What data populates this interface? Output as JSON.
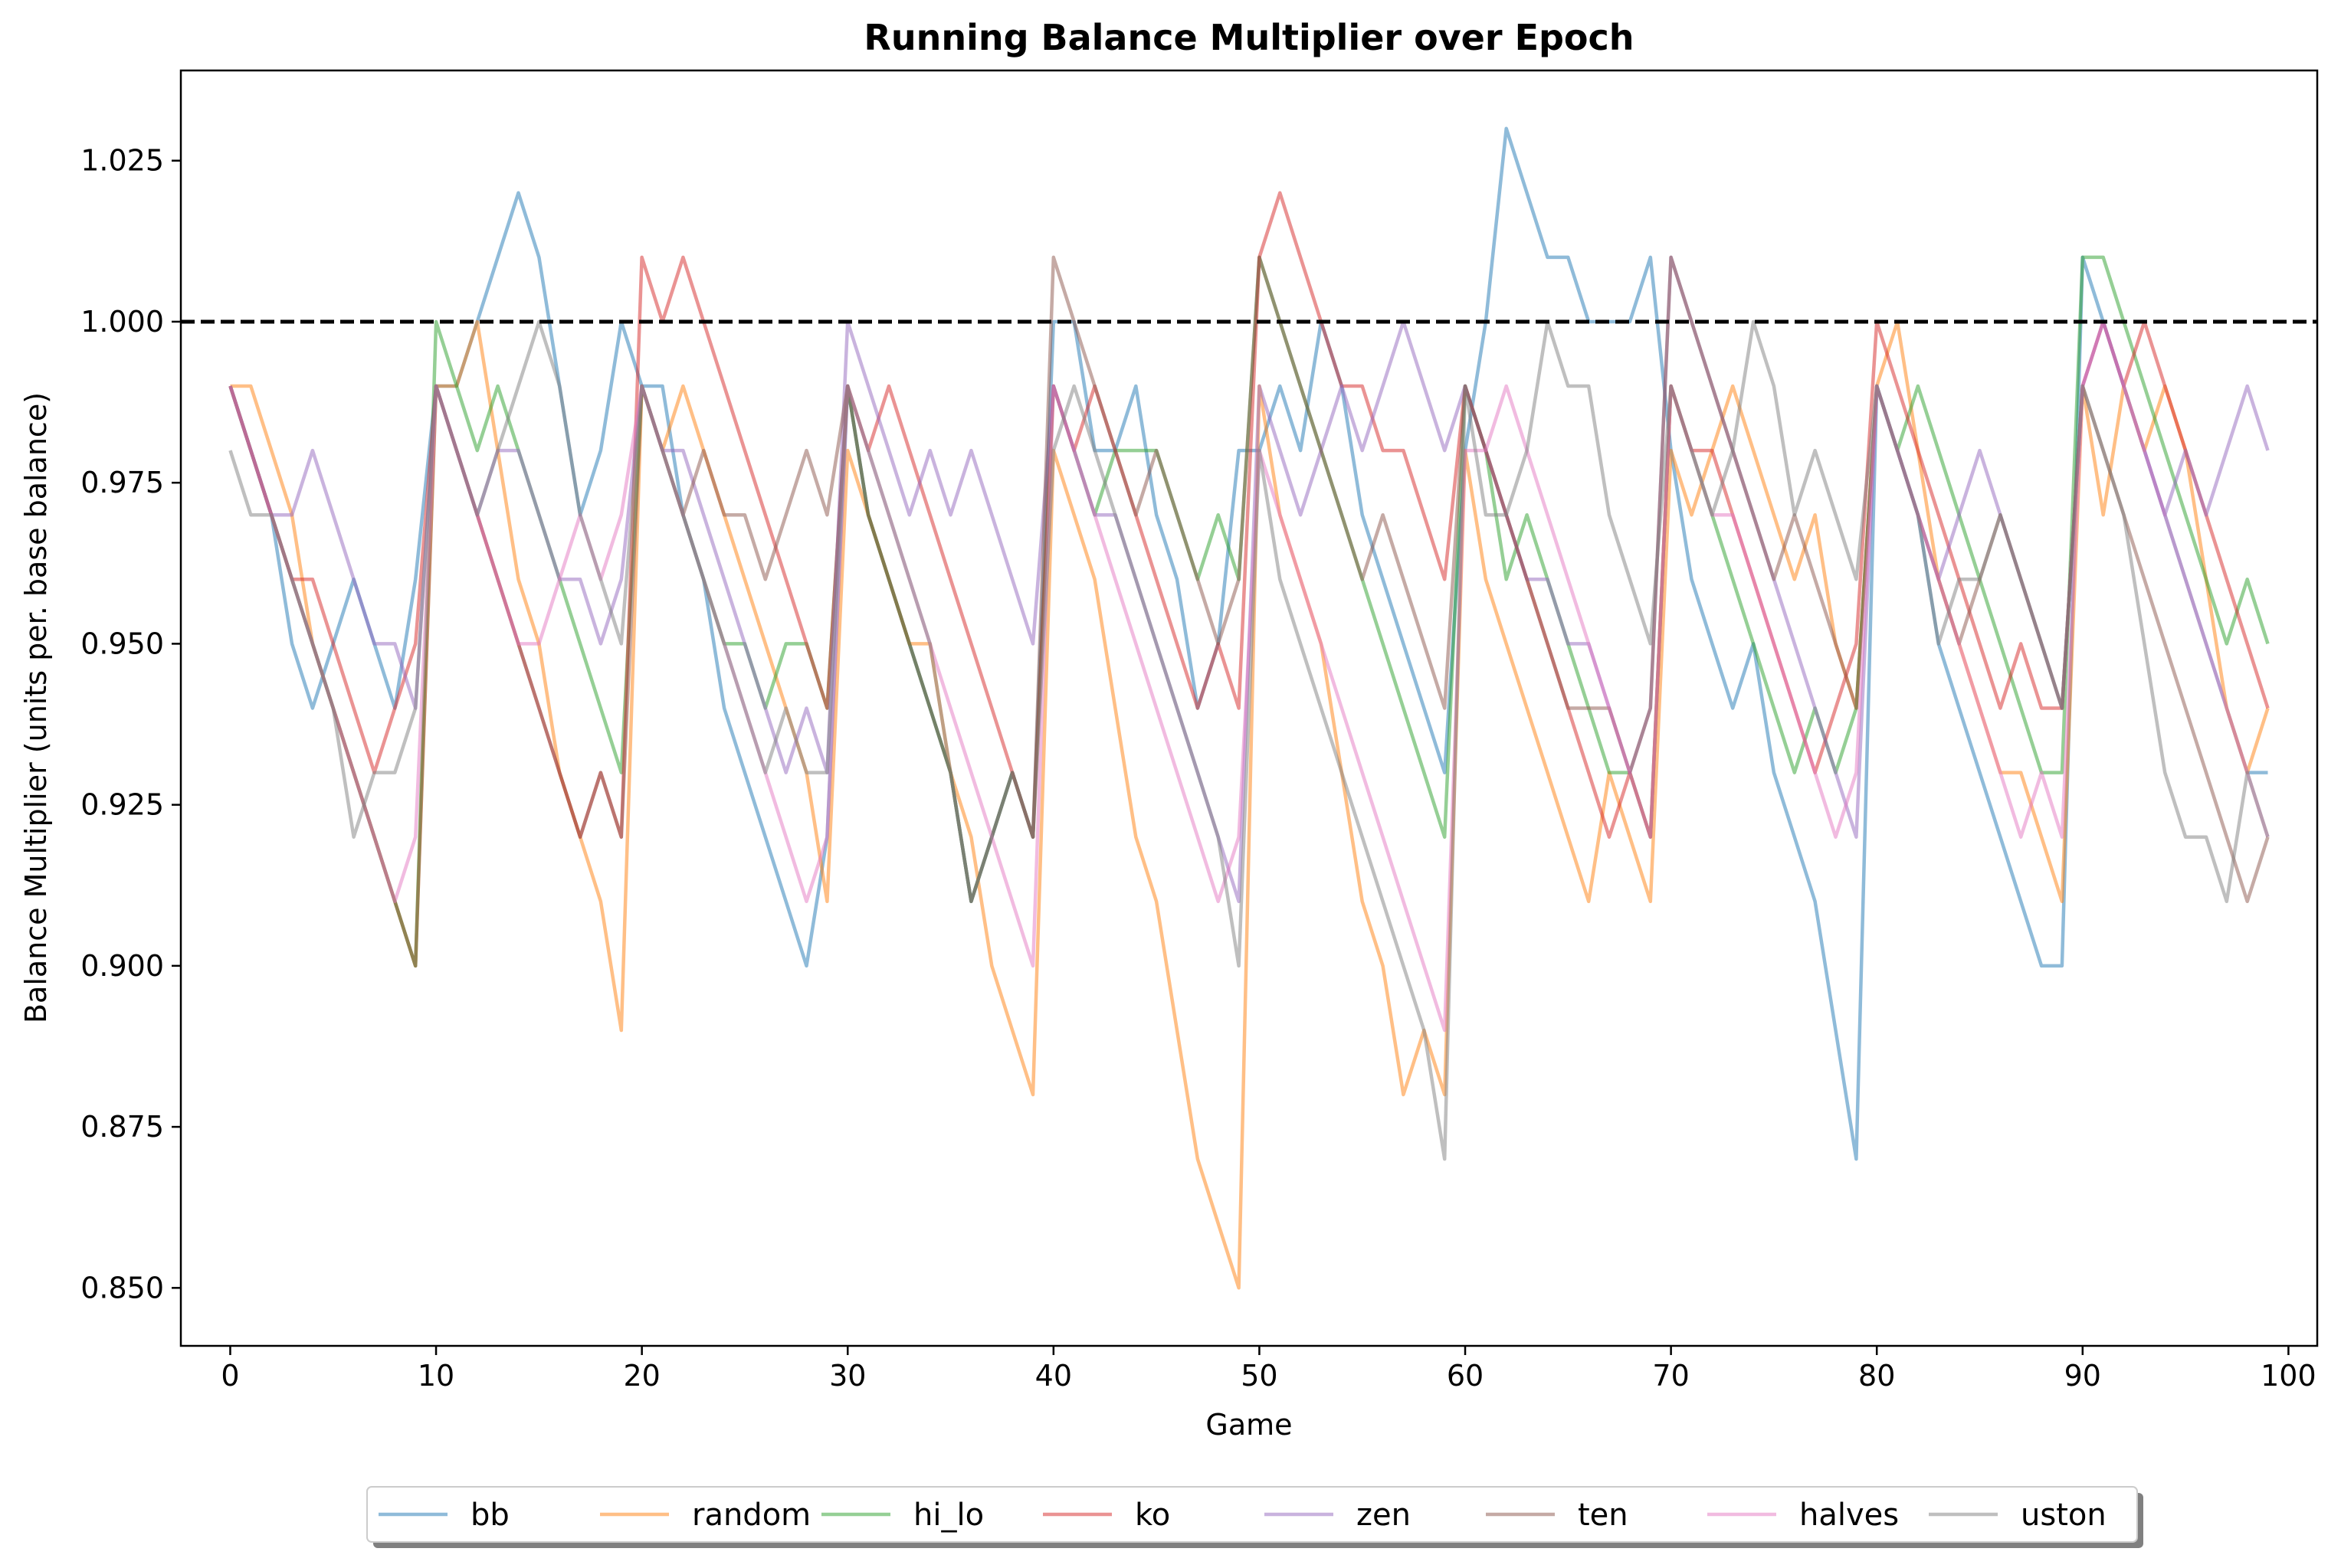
{
  "chart_data": {
    "type": "line",
    "title": "Running Balance Multiplier over Epoch",
    "xlabel": "Game",
    "ylabel": "Balance Multiplier (units per. base balance)",
    "xlim": [
      -2.4,
      101.4
    ],
    "ylim": [
      0.841,
      1.039
    ],
    "xticks": [
      0,
      10,
      20,
      30,
      40,
      50,
      60,
      70,
      80,
      90,
      100
    ],
    "yticks": [
      0.85,
      0.875,
      0.9,
      0.925,
      0.95,
      0.975,
      1.0,
      1.025
    ],
    "ytick_labels": [
      "0.850",
      "0.875",
      "0.900",
      "0.925",
      "0.950",
      "0.975",
      "1.000",
      "1.025"
    ],
    "reference_line": {
      "y": 1.0,
      "style": "dashed",
      "color": "#000000"
    },
    "grid": false,
    "legend_position": "bottom-center",
    "series": [
      {
        "name": "bb",
        "color": "#1f77b4",
        "values": [
          0.99,
          0.98,
          0.97,
          0.95,
          0.94,
          0.95,
          0.96,
          0.95,
          0.94,
          0.96,
          0.99,
          0.99,
          1.0,
          1.01,
          1.02,
          1.01,
          0.99,
          0.97,
          0.98,
          1.0,
          0.99,
          0.99,
          0.97,
          0.96,
          0.94,
          0.93,
          0.92,
          0.91,
          0.9,
          0.92,
          0.99,
          0.97,
          0.96,
          0.95,
          0.94,
          0.93,
          0.91,
          0.92,
          0.93,
          0.92,
          1.0,
          1.0,
          0.98,
          0.98,
          0.99,
          0.97,
          0.96,
          0.94,
          0.95,
          0.98,
          0.98,
          0.99,
          0.98,
          1.0,
          0.99,
          0.97,
          0.96,
          0.95,
          0.94,
          0.93,
          0.98,
          1.0,
          1.03,
          1.02,
          1.01,
          1.01,
          1.0,
          1.0,
          1.0,
          1.01,
          0.98,
          0.96,
          0.95,
          0.94,
          0.95,
          0.93,
          0.92,
          0.91,
          0.89,
          0.87,
          0.99,
          0.98,
          0.97,
          0.95,
          0.94,
          0.93,
          0.92,
          0.91,
          0.9,
          0.9,
          1.01,
          1.0,
          0.99,
          0.98,
          0.97,
          0.96,
          0.95,
          0.94,
          0.93,
          0.93
        ]
      },
      {
        "name": "random",
        "color": "#ff7f0e",
        "values": [
          0.99,
          0.99,
          0.98,
          0.97,
          0.95,
          0.94,
          0.93,
          0.92,
          0.91,
          0.9,
          0.99,
          0.99,
          1.0,
          0.98,
          0.96,
          0.95,
          0.93,
          0.92,
          0.91,
          0.89,
          0.99,
          0.98,
          0.99,
          0.98,
          0.97,
          0.96,
          0.95,
          0.94,
          0.93,
          0.91,
          0.98,
          0.97,
          0.96,
          0.95,
          0.95,
          0.93,
          0.92,
          0.9,
          0.89,
          0.88,
          0.98,
          0.97,
          0.96,
          0.94,
          0.92,
          0.91,
          0.89,
          0.87,
          0.86,
          0.85,
          0.99,
          0.97,
          0.96,
          0.95,
          0.93,
          0.91,
          0.9,
          0.88,
          0.89,
          0.88,
          0.98,
          0.96,
          0.95,
          0.94,
          0.93,
          0.92,
          0.91,
          0.93,
          0.92,
          0.91,
          0.98,
          0.97,
          0.98,
          0.99,
          0.98,
          0.97,
          0.96,
          0.97,
          0.95,
          0.94,
          0.99,
          1.0,
          0.98,
          0.96,
          0.95,
          0.94,
          0.93,
          0.93,
          0.92,
          0.91,
          0.99,
          0.97,
          0.99,
          0.98,
          0.99,
          0.98,
          0.96,
          0.94,
          0.93,
          0.94
        ]
      },
      {
        "name": "hi_lo",
        "color": "#2ca02c",
        "values": [
          0.99,
          0.98,
          0.97,
          0.96,
          0.95,
          0.94,
          0.93,
          0.92,
          0.91,
          0.9,
          1.0,
          0.99,
          0.98,
          0.99,
          0.98,
          0.97,
          0.96,
          0.95,
          0.94,
          0.93,
          0.99,
          0.98,
          0.97,
          0.96,
          0.95,
          0.95,
          0.94,
          0.95,
          0.95,
          0.94,
          0.99,
          0.97,
          0.96,
          0.95,
          0.94,
          0.93,
          0.91,
          0.92,
          0.93,
          0.92,
          0.99,
          0.98,
          0.97,
          0.98,
          0.98,
          0.98,
          0.97,
          0.96,
          0.97,
          0.96,
          1.01,
          1.0,
          0.99,
          0.98,
          0.97,
          0.96,
          0.95,
          0.94,
          0.93,
          0.92,
          0.99,
          0.98,
          0.96,
          0.97,
          0.96,
          0.95,
          0.94,
          0.93,
          0.93,
          0.92,
          0.99,
          0.98,
          0.97,
          0.96,
          0.95,
          0.94,
          0.93,
          0.94,
          0.93,
          0.94,
          0.99,
          0.98,
          0.99,
          0.98,
          0.97,
          0.96,
          0.95,
          0.94,
          0.93,
          0.93,
          1.01,
          1.01,
          1.0,
          0.99,
          0.98,
          0.97,
          0.96,
          0.95,
          0.96,
          0.95
        ]
      },
      {
        "name": "ko",
        "color": "#d62728",
        "values": [
          0.99,
          0.98,
          0.97,
          0.96,
          0.96,
          0.95,
          0.94,
          0.93,
          0.94,
          0.95,
          0.99,
          0.98,
          0.97,
          0.96,
          0.95,
          0.94,
          0.93,
          0.92,
          0.93,
          0.92,
          1.01,
          1.0,
          1.01,
          1.0,
          0.99,
          0.98,
          0.97,
          0.96,
          0.95,
          0.94,
          0.99,
          0.98,
          0.99,
          0.98,
          0.97,
          0.96,
          0.95,
          0.94,
          0.93,
          0.92,
          0.99,
          0.98,
          0.99,
          0.98,
          0.97,
          0.96,
          0.95,
          0.94,
          0.95,
          0.94,
          1.01,
          1.02,
          1.01,
          1.0,
          0.99,
          0.99,
          0.98,
          0.98,
          0.97,
          0.96,
          0.99,
          0.98,
          0.97,
          0.96,
          0.95,
          0.94,
          0.93,
          0.92,
          0.93,
          0.92,
          0.99,
          0.98,
          0.98,
          0.97,
          0.96,
          0.95,
          0.94,
          0.93,
          0.94,
          0.95,
          1.0,
          0.99,
          0.98,
          0.97,
          0.96,
          0.95,
          0.94,
          0.95,
          0.94,
          0.94,
          0.99,
          1.0,
          0.99,
          1.0,
          0.99,
          0.98,
          0.97,
          0.96,
          0.95,
          0.94
        ]
      },
      {
        "name": "zen",
        "color": "#9467bd",
        "values": [
          0.99,
          0.98,
          0.97,
          0.97,
          0.98,
          0.97,
          0.96,
          0.95,
          0.95,
          0.94,
          0.99,
          0.98,
          0.97,
          0.98,
          0.98,
          0.97,
          0.96,
          0.96,
          0.95,
          0.96,
          0.99,
          0.98,
          0.98,
          0.97,
          0.96,
          0.95,
          0.94,
          0.93,
          0.94,
          0.93,
          1.0,
          0.99,
          0.98,
          0.97,
          0.98,
          0.97,
          0.98,
          0.97,
          0.96,
          0.95,
          0.99,
          0.98,
          0.97,
          0.97,
          0.96,
          0.95,
          0.94,
          0.93,
          0.92,
          0.91,
          0.99,
          0.98,
          0.97,
          0.98,
          0.99,
          0.98,
          0.99,
          1.0,
          0.99,
          0.98,
          0.99,
          0.98,
          0.97,
          0.96,
          0.96,
          0.95,
          0.95,
          0.94,
          0.93,
          0.94,
          1.01,
          1.0,
          0.99,
          0.98,
          0.97,
          0.96,
          0.95,
          0.94,
          0.93,
          0.92,
          0.99,
          0.98,
          0.97,
          0.96,
          0.97,
          0.98,
          0.97,
          0.96,
          0.95,
          0.94,
          0.99,
          1.0,
          0.99,
          0.98,
          0.97,
          0.98,
          0.97,
          0.98,
          0.99,
          0.98
        ]
      },
      {
        "name": "ten",
        "color": "#8c564b",
        "values": [
          0.99,
          0.98,
          0.97,
          0.96,
          0.95,
          0.94,
          0.93,
          0.92,
          0.91,
          0.9,
          0.99,
          0.98,
          0.97,
          0.96,
          0.95,
          0.94,
          0.93,
          0.92,
          0.93,
          0.92,
          0.99,
          0.98,
          0.97,
          0.98,
          0.97,
          0.97,
          0.96,
          0.97,
          0.98,
          0.97,
          0.99,
          0.97,
          0.96,
          0.95,
          0.94,
          0.93,
          0.91,
          0.92,
          0.93,
          0.92,
          1.01,
          1.0,
          0.99,
          0.98,
          0.97,
          0.98,
          0.97,
          0.96,
          0.95,
          0.96,
          1.01,
          1.0,
          0.99,
          0.98,
          0.97,
          0.96,
          0.97,
          0.96,
          0.95,
          0.94,
          0.99,
          0.98,
          0.97,
          0.96,
          0.95,
          0.94,
          0.94,
          0.94,
          0.93,
          0.94,
          1.01,
          1.0,
          0.99,
          0.98,
          0.97,
          0.96,
          0.97,
          0.96,
          0.95,
          0.94,
          0.99,
          0.98,
          0.97,
          0.96,
          0.95,
          0.96,
          0.97,
          0.96,
          0.95,
          0.94,
          0.99,
          0.98,
          0.97,
          0.96,
          0.95,
          0.94,
          0.93,
          0.92,
          0.91,
          0.92
        ]
      },
      {
        "name": "halves",
        "color": "#e377c2",
        "values": [
          0.99,
          0.98,
          0.97,
          0.96,
          0.95,
          0.94,
          0.93,
          0.92,
          0.91,
          0.92,
          0.99,
          0.98,
          0.97,
          0.96,
          0.95,
          0.95,
          0.96,
          0.97,
          0.96,
          0.97,
          0.99,
          0.98,
          0.97,
          0.96,
          0.95,
          0.94,
          0.93,
          0.92,
          0.91,
          0.92,
          0.99,
          0.98,
          0.97,
          0.96,
          0.95,
          0.94,
          0.93,
          0.92,
          0.91,
          0.9,
          0.99,
          0.98,
          0.97,
          0.96,
          0.95,
          0.94,
          0.93,
          0.92,
          0.91,
          0.92,
          0.98,
          0.97,
          0.96,
          0.95,
          0.94,
          0.93,
          0.92,
          0.91,
          0.9,
          0.89,
          0.98,
          0.98,
          0.99,
          0.98,
          0.97,
          0.96,
          0.95,
          0.94,
          0.93,
          0.92,
          0.99,
          0.98,
          0.97,
          0.97,
          0.96,
          0.95,
          0.94,
          0.93,
          0.92,
          0.93,
          0.99,
          0.98,
          0.97,
          0.96,
          0.95,
          0.94,
          0.93,
          0.92,
          0.93,
          0.92,
          0.99,
          1.0,
          0.99,
          0.98,
          0.97,
          0.96,
          0.95,
          0.94,
          0.93,
          0.92
        ]
      },
      {
        "name": "uston",
        "color": "#7f7f7f",
        "values": [
          0.98,
          0.97,
          0.97,
          0.96,
          0.95,
          0.94,
          0.92,
          0.93,
          0.93,
          0.94,
          0.99,
          0.98,
          0.97,
          0.98,
          0.99,
          1.0,
          0.99,
          0.97,
          0.96,
          0.95,
          0.99,
          0.98,
          0.97,
          0.96,
          0.95,
          0.94,
          0.93,
          0.94,
          0.93,
          0.93,
          0.99,
          0.98,
          0.97,
          0.96,
          0.95,
          0.93,
          0.91,
          0.92,
          0.93,
          0.92,
          0.98,
          0.99,
          0.98,
          0.97,
          0.96,
          0.95,
          0.94,
          0.93,
          0.92,
          0.9,
          0.98,
          0.96,
          0.95,
          0.94,
          0.93,
          0.92,
          0.91,
          0.9,
          0.89,
          0.87,
          0.99,
          0.97,
          0.97,
          0.98,
          1.0,
          0.99,
          0.99,
          0.97,
          0.96,
          0.95,
          0.99,
          0.98,
          0.97,
          0.98,
          1.0,
          0.99,
          0.97,
          0.98,
          0.97,
          0.96,
          0.99,
          0.98,
          0.97,
          0.95,
          0.96,
          0.96,
          0.97,
          0.96,
          0.95,
          0.94,
          0.99,
          0.98,
          0.97,
          0.95,
          0.93,
          0.92,
          0.92,
          0.91,
          0.93,
          0.92
        ]
      }
    ]
  }
}
